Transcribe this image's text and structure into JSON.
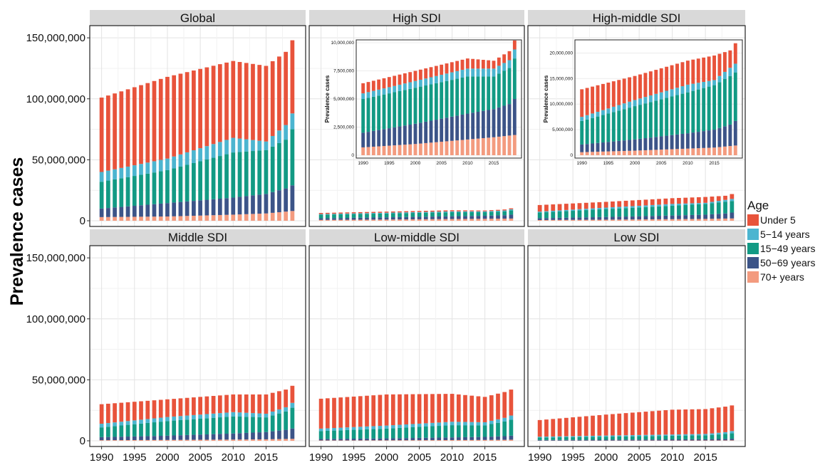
{
  "chart_data": {
    "type": "bar",
    "stacked": true,
    "facet_layout": "2x3 grid, shared y axis",
    "ylabel": "Prevalence cases",
    "y_ticks": [
      "0",
      "50,000,000",
      "100,000,000",
      "150,000,000"
    ],
    "x_ticks": [
      "1990",
      "1995",
      "2000",
      "2005",
      "2010",
      "2015"
    ],
    "ylim": [
      0,
      160000000
    ],
    "grid": true,
    "legend": {
      "title": "Age",
      "placement": "right",
      "entries": [
        {
          "name": "Under 5",
          "color": "#e8533b"
        },
        {
          "name": "5−14 years",
          "color": "#4cb5d0"
        },
        {
          "name": "15−49 years",
          "color": "#129a84"
        },
        {
          "name": "50−69 years",
          "color": "#3c5488"
        },
        {
          "name": "70+ years",
          "color": "#f39b7f"
        }
      ]
    },
    "series_order": [
      "70+ years",
      "50−69 years",
      "15−49 years",
      "5−14 years",
      "Under 5"
    ],
    "years_start": 1990,
    "years_end": 2019,
    "panels": [
      {
        "title": "Global",
        "anchors": {
          "years": [
            1990,
            2000,
            2010,
            2015,
            2018,
            2019
          ],
          "70+ years": [
            3000000,
            3500000,
            5000000,
            6000000,
            7500000,
            8000000
          ],
          "50−69 years": [
            7000000,
            11000000,
            14000000,
            16000000,
            19000000,
            21000000
          ],
          "15−49 years": [
            22000000,
            27000000,
            37000000,
            36000000,
            40000000,
            46000000
          ],
          "5−14 years": [
            8000000,
            9500000,
            12000000,
            7000000,
            12000000,
            13000000
          ],
          "Under 5": [
            61000000,
            67000000,
            63000000,
            62000000,
            60000000,
            60000000
          ]
        },
        "inset": null
      },
      {
        "title": "High SDI",
        "anchors": {
          "years": [
            1990,
            2000,
            2010,
            2015,
            2018,
            2019
          ],
          "70+ years": [
            700000,
            1000000,
            1400000,
            1600000,
            1750000,
            1800000
          ],
          "50−69 years": [
            1300000,
            1800000,
            2300000,
            2500000,
            2800000,
            3200000
          ],
          "15−49 years": [
            3000000,
            3200000,
            3300000,
            2900000,
            3200000,
            3600000
          ],
          "5−14 years": [
            500000,
            600000,
            700000,
            700000,
            700000,
            800000
          ],
          "Under 5": [
            900000,
            900000,
            900000,
            700000,
            800000,
            800000
          ]
        },
        "inset": {
          "y_ticks": [
            "0",
            "2,500,000",
            "5,000,000",
            "7,500,000",
            "10,000,000"
          ],
          "ymax": 10000000,
          "x_ticks": [
            "1990",
            "1995",
            "2000",
            "2005",
            "2010",
            "2015"
          ],
          "ylabel": "Prevalence cases"
        }
      },
      {
        "title": "High-middle SDI",
        "anchors": {
          "years": [
            1990,
            2000,
            2010,
            2015,
            2018,
            2019
          ],
          "70+ years": [
            600000,
            900000,
            1300000,
            1500000,
            1800000,
            1900000
          ],
          "50−69 years": [
            1500000,
            2200000,
            3000000,
            3500000,
            4200000,
            4800000
          ],
          "15−49 years": [
            4600000,
            6500000,
            8000000,
            8700000,
            9500000,
            9500000
          ],
          "5−14 years": [
            800000,
            1200000,
            1500000,
            1000000,
            1600000,
            1700000
          ],
          "Under 5": [
            5400000,
            4700000,
            4700000,
            4800000,
            3400000,
            4000000
          ]
        },
        "inset": {
          "y_ticks": [
            "0",
            "5,000,000",
            "10,000,000",
            "15,000,000",
            "20,000,000"
          ],
          "ymax": 22000000,
          "x_ticks": [
            "1990",
            "1995",
            "2000",
            "2005",
            "2010",
            "2015"
          ],
          "ylabel": "Prevalence cases"
        }
      },
      {
        "title": "Middle SDI",
        "anchors": {
          "years": [
            1990,
            2000,
            2010,
            2015,
            2018,
            2019
          ],
          "70+ years": [
            500000,
            700000,
            1000000,
            1200000,
            1500000,
            1600000
          ],
          "50−69 years": [
            2500000,
            3500000,
            5000000,
            6000000,
            7500000,
            8500000
          ],
          "15−49 years": [
            8000000,
            12000000,
            14000000,
            12000000,
            15000000,
            17000000
          ],
          "5−14 years": [
            3000000,
            3300000,
            3500000,
            3000000,
            3500000,
            4000000
          ],
          "Under 5": [
            16000000,
            14500000,
            14500000,
            15800000,
            14500000,
            14000000
          ]
        },
        "inset": null
      },
      {
        "title": "Low-middle SDI",
        "anchors": {
          "years": [
            1990,
            2000,
            2010,
            2015,
            2018,
            2019
          ],
          "70+ years": [
            300000,
            400000,
            600000,
            700000,
            800000,
            900000
          ],
          "50−69 years": [
            1200000,
            1600000,
            2200000,
            2500000,
            3000000,
            3300000
          ],
          "15−49 years": [
            6500000,
            8000000,
            10000000,
            9500000,
            12000000,
            13000000
          ],
          "5−14 years": [
            2000000,
            2500000,
            2800000,
            2500000,
            3000000,
            3500000
          ],
          "Under 5": [
            24500000,
            25500000,
            22900000,
            20800000,
            21200000,
            21300000
          ]
        },
        "inset": null
      },
      {
        "title": "Low SDI",
        "anchors": {
          "years": [
            1990,
            2000,
            2010,
            2015,
            2018,
            2019
          ],
          "70+ years": [
            150000,
            200000,
            250000,
            300000,
            350000,
            400000
          ],
          "50−69 years": [
            500000,
            700000,
            900000,
            1000000,
            1200000,
            1300000
          ],
          "15−49 years": [
            2000000,
            2500000,
            3000000,
            3200000,
            4000000,
            4500000
          ],
          "5−14 years": [
            700000,
            900000,
            1000000,
            1100000,
            1500000,
            1800000
          ],
          "Under 5": [
            13650000,
            17200000,
            20350000,
            20400000,
            20950000,
            21000000
          ]
        },
        "inset": null
      }
    ]
  }
}
